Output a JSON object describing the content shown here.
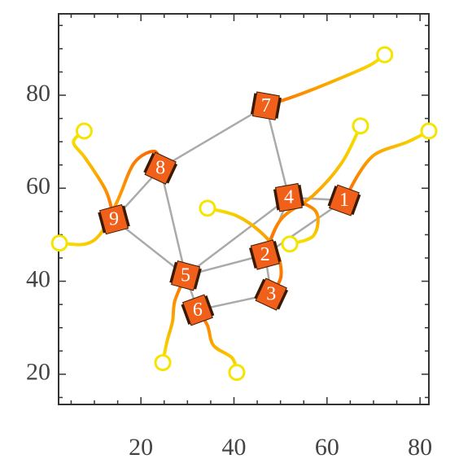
{
  "chart_data": {
    "type": "scatter",
    "xlim": [
      2.3,
      81.9
    ],
    "ylim": [
      13.5,
      97.5
    ],
    "xticks": [
      20,
      40,
      60,
      80
    ],
    "yticks": [
      20,
      40,
      60,
      80
    ],
    "xminorticks": [
      5,
      10,
      15,
      25,
      30,
      35,
      45,
      50,
      55,
      65,
      70,
      75
    ],
    "yminorticks": [
      15,
      25,
      30,
      35,
      45,
      50,
      55,
      65,
      70,
      75,
      85,
      90,
      95
    ],
    "robots": {
      "labels": [
        "1",
        "2",
        "3",
        "4",
        "5",
        "6",
        "7",
        "8",
        "9"
      ],
      "x": [
        63.7,
        46.7,
        48.0,
        51.8,
        29.6,
        32.2,
        46.9,
        24.2,
        14.2
      ],
      "y": [
        57.4,
        45.7,
        37.2,
        58.0,
        41.2,
        33.8,
        77.7,
        64.3,
        53.3
      ],
      "color": "#f0601a"
    },
    "edges": [
      [
        "7",
        "8"
      ],
      [
        "7",
        "4"
      ],
      [
        "8",
        "9"
      ],
      [
        "8",
        "5"
      ],
      [
        "9",
        "5"
      ],
      [
        "5",
        "6"
      ],
      [
        "5",
        "2"
      ],
      [
        "5",
        "4"
      ],
      [
        "6",
        "3"
      ],
      [
        "3",
        "2"
      ],
      [
        "2",
        "4"
      ],
      [
        "4",
        "1"
      ],
      [
        "2",
        "1"
      ]
    ],
    "edge_color": "#aaaaaa",
    "start_color": "#f5e400",
    "end_color": "#ff6a00",
    "trajectories": [
      {
        "x": [
          81.9,
          77.2,
          71.9,
          69.3,
          66.7,
          63.7
        ],
        "y": [
          72.3,
          69.9,
          68.1,
          66.4,
          62.9,
          57.4
        ]
      },
      {
        "x": [
          67.2,
          63.2,
          57.1,
          50.1,
          46.7
        ],
        "y": [
          73.4,
          65.5,
          58.5,
          53.3,
          45.7
        ]
      },
      {
        "x": [
          34.3,
          40.5,
          45.7,
          49.2,
          50.1,
          48.0
        ],
        "y": [
          55.7,
          54.1,
          50.6,
          46.3,
          41.0,
          37.2
        ]
      },
      {
        "x": [
          52.0,
          57.1,
          57.6,
          51.8
        ],
        "y": [
          48.0,
          49.8,
          55.0,
          58.0
        ]
      },
      {
        "x": [
          24.7,
          25.6,
          26.8,
          27.3,
          29.6
        ],
        "y": [
          22.5,
          27.0,
          31.4,
          35.8,
          41.2
        ]
      },
      {
        "x": [
          40.6,
          39.6,
          35.6,
          34.3,
          32.2
        ],
        "y": [
          20.4,
          23.5,
          26.2,
          30.5,
          33.8
        ]
      },
      {
        "x": [
          72.4,
          69.3,
          63.2,
          54.5,
          46.9
        ],
        "y": [
          88.7,
          86.5,
          83.8,
          80.3,
          77.7
        ]
      },
      {
        "x": [
          2.5,
          8.1,
          11.6,
          15.1,
          18.6,
          23.0,
          24.2
        ],
        "y": [
          48.2,
          48.0,
          50.6,
          57.6,
          65.5,
          67.9,
          64.3
        ]
      },
      {
        "x": [
          7.8,
          5.5,
          8.1,
          12.5,
          14.2
        ],
        "y": [
          72.3,
          69.9,
          66.4,
          59.4,
          53.3
        ]
      }
    ]
  }
}
